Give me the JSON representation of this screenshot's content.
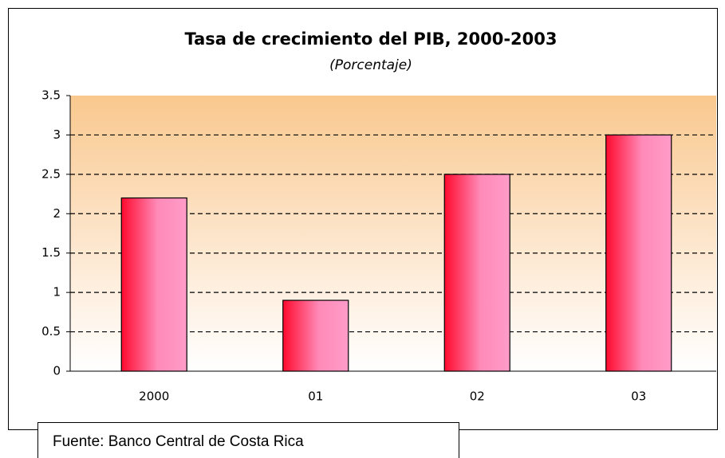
{
  "chart_data": {
    "type": "bar",
    "title": "Tasa de crecimiento del PIB, 2000-2003",
    "subtitle": "(Porcentaje)",
    "categories": [
      "2000",
      "01",
      "02",
      "03"
    ],
    "values": [
      2.2,
      0.9,
      2.5,
      3.0
    ],
    "color": "#ff0a2e",
    "ylim": [
      0,
      3.5
    ],
    "yticks": [
      0,
      0.5,
      1,
      1.5,
      2,
      2.5,
      3,
      3.5
    ],
    "grid": true,
    "source": "Fuente: Banco Central de Costa Rica"
  }
}
